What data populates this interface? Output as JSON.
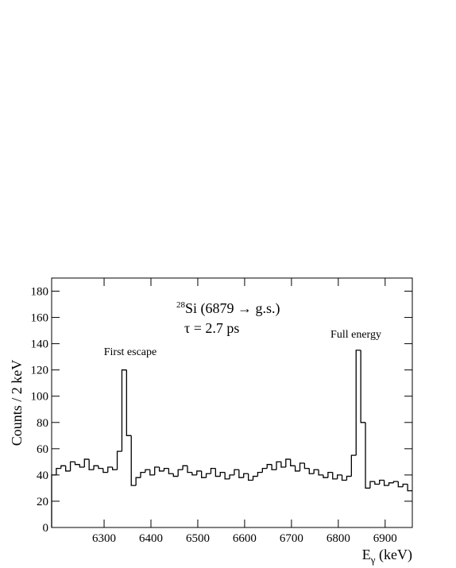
{
  "chart_data": {
    "type": "histogram",
    "annotation_mass": "28",
    "annotation_nucleus": "Si (6879 → g.s.)",
    "annotation_lifetime": "τ = 2.7 ps",
    "peak_labels": [
      "First escape",
      "Full energy"
    ],
    "y_label": "Counts / 2 keV",
    "x_label": "E",
    "x_label_subscript": "γ",
    "x_label_unit": " (keV)",
    "color": "#000000",
    "bins": [
      6188,
      6198,
      6208,
      6218,
      6228,
      6238,
      6248,
      6258,
      6268,
      6278,
      6288,
      6298,
      6308,
      6318,
      6328,
      6338,
      6348,
      6358,
      6368,
      6378,
      6388,
      6398,
      6408,
      6418,
      6428,
      6438,
      6448,
      6458,
      6468,
      6478,
      6488,
      6498,
      6508,
      6518,
      6528,
      6538,
      6548,
      6558,
      6568,
      6578,
      6588,
      6598,
      6608,
      6618,
      6628,
      6638,
      6648,
      6658,
      6668,
      6678,
      6688,
      6698,
      6708,
      6718,
      6728,
      6738,
      6748,
      6758,
      6768,
      6778,
      6788,
      6798,
      6808,
      6818,
      6828,
      6838,
      6848,
      6858,
      6868,
      6878,
      6888,
      6898,
      6908,
      6918,
      6928,
      6938,
      6948,
      6958
    ],
    "values": [
      40,
      45,
      47,
      43,
      50,
      48,
      46,
      52,
      44,
      47,
      45,
      42,
      46,
      44,
      58,
      120,
      70,
      32,
      38,
      42,
      44,
      40,
      46,
      43,
      45,
      41,
      39,
      44,
      47,
      42,
      40,
      43,
      38,
      41,
      45,
      39,
      42,
      37,
      40,
      44,
      38,
      41,
      36,
      39,
      42,
      45,
      48,
      44,
      50,
      46,
      52,
      47,
      43,
      49,
      45,
      41,
      44,
      40,
      38,
      42,
      37,
      40,
      36,
      39,
      55,
      135,
      80,
      30,
      35,
      33,
      36,
      32,
      34,
      35,
      31,
      33,
      28
    ],
    "xlim": [
      6188,
      6958
    ],
    "ylim": [
      0,
      190
    ],
    "xticks": [
      6300,
      6400,
      6500,
      6600,
      6700,
      6800,
      6900
    ],
    "yticks": [
      0,
      20,
      40,
      60,
      80,
      100,
      120,
      140,
      160,
      180
    ]
  }
}
